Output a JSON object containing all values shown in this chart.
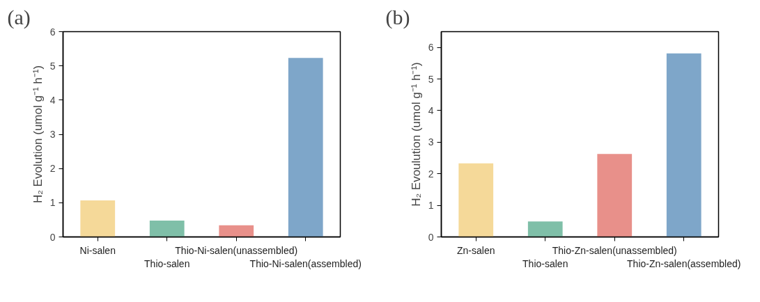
{
  "chart_data": [
    {
      "type": "bar",
      "title": "(a)",
      "ylabel": "H₂ Evolution (umol g⁻¹ h⁻¹)",
      "categories": [
        "Ni-salen",
        "Thio-salen",
        "Thio-Ni-salen(unassembled)",
        "Thio-Ni-salen(assembled)"
      ],
      "values": [
        1.07,
        0.48,
        0.34,
        5.23
      ],
      "colors": [
        "#f5d999",
        "#7fbfa8",
        "#e8908a",
        "#7ea6c9"
      ],
      "ylim": [
        0,
        6
      ],
      "yticks": [
        0,
        1,
        2,
        3,
        4,
        5,
        6
      ],
      "grid": false
    },
    {
      "type": "bar",
      "title": "(b)",
      "ylabel": "H₂ Evoulution (umol g⁻¹ h⁻¹)",
      "categories": [
        "Zn-salen",
        "Thio-salen",
        "Thio-Zn-salen(unassembled)",
        "Thio-Zn-salen(assembled)"
      ],
      "values": [
        2.33,
        0.49,
        2.63,
        5.81
      ],
      "colors": [
        "#f5d999",
        "#7fbfa8",
        "#e8908a",
        "#7ea6c9"
      ],
      "ylim": [
        0,
        6.5
      ],
      "yticks": [
        0,
        1,
        2,
        3,
        4,
        5,
        6
      ],
      "grid": false
    }
  ]
}
